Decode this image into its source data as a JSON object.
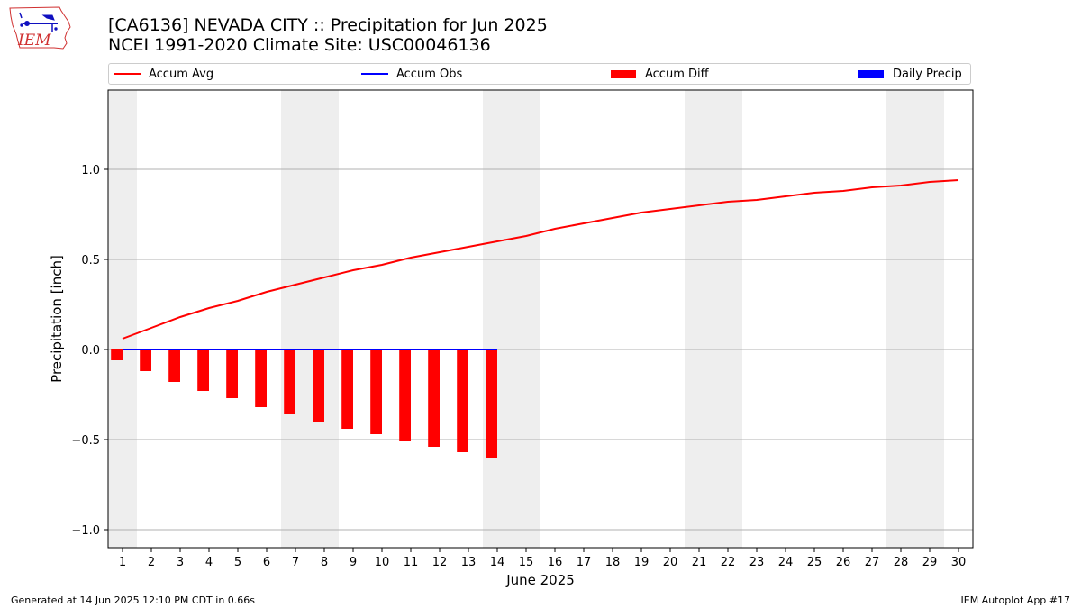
{
  "header": {
    "title_line1": "[CA6136] NEVADA CITY :: Precipitation for Jun 2025",
    "title_line2": "NCEI 1991-2020 Climate Site: USC00046136",
    "logo_text": "IEM"
  },
  "legend": {
    "accum_avg": "Accum Avg",
    "accum_obs": "Accum Obs",
    "accum_diff": "Accum Diff",
    "daily_precip": "Daily Precip"
  },
  "footer": {
    "generated": "Generated at 14 Jun 2025 12:10 PM CDT in 0.66s",
    "app": "IEM Autoplot App #17"
  },
  "colors": {
    "accum_avg": "#ff0000",
    "accum_obs": "#0000ff",
    "accum_diff": "#ff0000",
    "daily_precip": "#0000ff",
    "weekend_shade": "#eeeeee",
    "grid": "#b0b0b0"
  },
  "chart_data": {
    "type": "line",
    "xlabel": "June 2025",
    "ylabel": "Precipitation [inch]",
    "xlim": [
      0.5,
      30.5
    ],
    "ylim": [
      -1.1,
      1.44
    ],
    "x_ticks": [
      1,
      2,
      3,
      4,
      5,
      6,
      7,
      8,
      9,
      10,
      11,
      12,
      13,
      14,
      15,
      16,
      17,
      18,
      19,
      20,
      21,
      22,
      23,
      24,
      25,
      26,
      27,
      28,
      29,
      30
    ],
    "y_ticks": [
      -1.0,
      -0.5,
      0.0,
      0.5,
      1.0
    ],
    "y_tick_labels": [
      "−1.0",
      "−0.5",
      "0.0",
      "0.5",
      "1.0"
    ],
    "grid": "horizontal",
    "legend_position": "top",
    "weekend_shading": [
      [
        0.5,
        1.5
      ],
      [
        6.5,
        8.5
      ],
      [
        13.5,
        15.5
      ],
      [
        20.5,
        22.5
      ],
      [
        27.5,
        29.5
      ]
    ],
    "series": [
      {
        "name": "Accum Avg",
        "kind": "line",
        "x": [
          1,
          2,
          3,
          4,
          5,
          6,
          7,
          8,
          9,
          10,
          11,
          12,
          13,
          14,
          15,
          16,
          17,
          18,
          19,
          20,
          21,
          22,
          23,
          24,
          25,
          26,
          27,
          28,
          29,
          30
        ],
        "values": [
          0.06,
          0.12,
          0.18,
          0.23,
          0.27,
          0.32,
          0.36,
          0.4,
          0.44,
          0.47,
          0.51,
          0.54,
          0.57,
          0.6,
          0.63,
          0.67,
          0.7,
          0.73,
          0.76,
          0.78,
          0.8,
          0.82,
          0.83,
          0.85,
          0.87,
          0.88,
          0.9,
          0.91,
          0.93,
          0.94
        ]
      },
      {
        "name": "Accum Obs",
        "kind": "line",
        "x": [
          1,
          2,
          3,
          4,
          5,
          6,
          7,
          8,
          9,
          10,
          11,
          12,
          13,
          14
        ],
        "values": [
          0,
          0,
          0,
          0,
          0,
          0,
          0,
          0,
          0,
          0,
          0,
          0,
          0,
          0
        ]
      },
      {
        "name": "Accum Diff",
        "kind": "bar",
        "x": [
          1,
          2,
          3,
          4,
          5,
          6,
          7,
          8,
          9,
          10,
          11,
          12,
          13,
          14
        ],
        "values": [
          -0.06,
          -0.12,
          -0.18,
          -0.23,
          -0.27,
          -0.32,
          -0.36,
          -0.4,
          -0.44,
          -0.47,
          -0.51,
          -0.54,
          -0.57,
          -0.6
        ]
      },
      {
        "name": "Daily Precip",
        "kind": "bar",
        "x": [
          1,
          2,
          3,
          4,
          5,
          6,
          7,
          8,
          9,
          10,
          11,
          12,
          13,
          14
        ],
        "values": [
          0,
          0,
          0,
          0,
          0,
          0,
          0,
          0,
          0,
          0,
          0,
          0,
          0,
          0
        ]
      }
    ]
  }
}
